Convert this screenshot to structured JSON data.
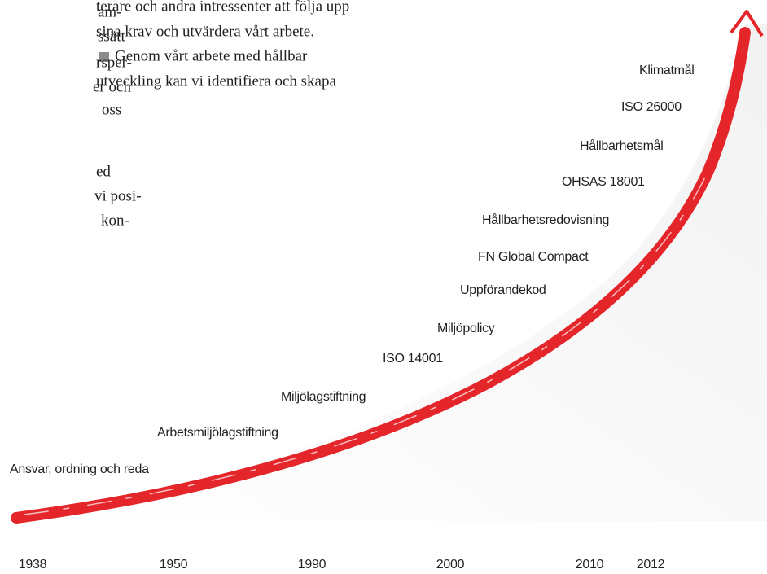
{
  "left_column": {
    "lines": [
      "am-",
      "ssätt",
      "rsper-",
      "er och",
      "oss",
      "ed",
      "vi posi-",
      "kon-"
    ]
  },
  "middle_column": {
    "lines": [
      "terare och andra intressenter att följa upp",
      "sina krav och utvärdera vårt arbete.",
      "Genom vårt arbete med hållbar",
      "utveckling kan vi identifiera och skapa"
    ]
  },
  "timeline": {
    "milestones": [
      "Ansvar, ordning och reda",
      "Arbetsmiljölagstiftning",
      "Miljölagstiftning",
      "ISO 14001",
      "Miljöpolicy",
      "Uppförandekod",
      "FN Global Compact",
      "Hållbarhetsredovisning",
      "OHSAS 18001",
      "Hållbarhetsmål",
      "ISO 26000",
      "Klimatmål"
    ],
    "years": [
      "1938",
      "1950",
      "1990",
      "2000",
      "2010",
      "2012"
    ]
  }
}
